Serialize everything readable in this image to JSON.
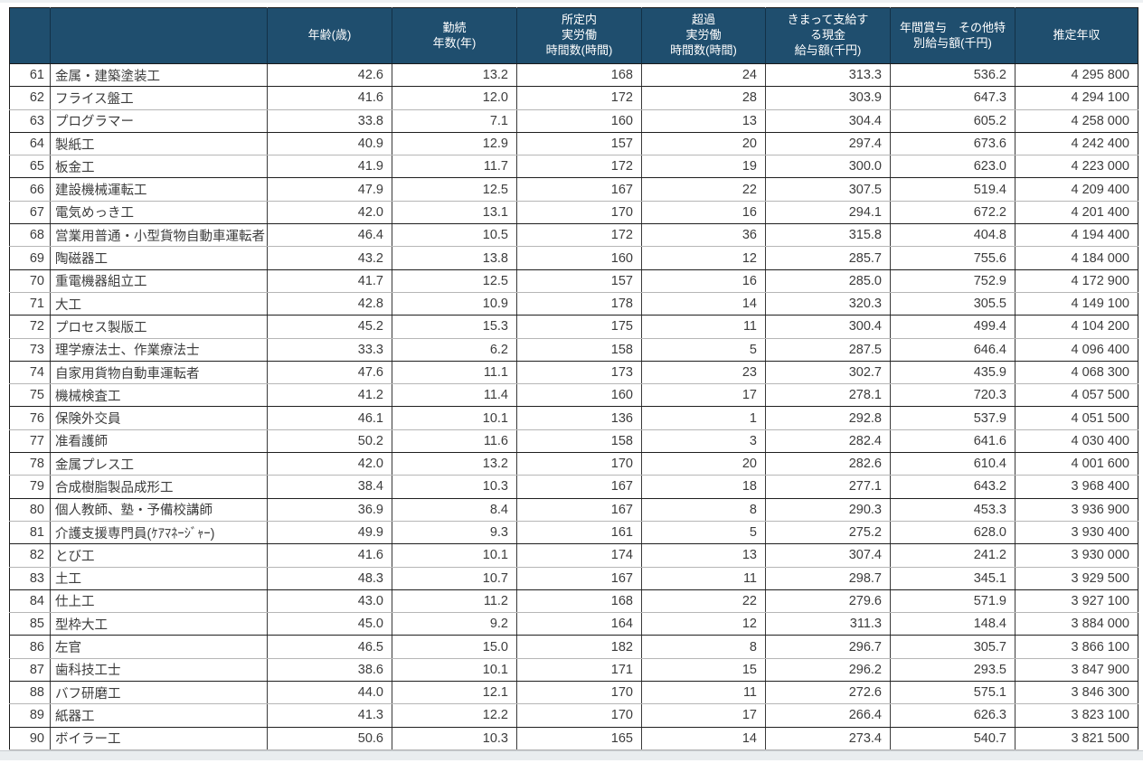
{
  "colors": {
    "header_bg": "#1f4e6e",
    "header_text": "#ffffff",
    "grid_dark": "#1f1f1f",
    "grid_light": "#b6b6b6",
    "cell_text": "#3c3c3c",
    "page_margin": "#e9edef"
  },
  "table": {
    "columns": [
      {
        "key": "rank",
        "label": ""
      },
      {
        "key": "name",
        "label": ""
      },
      {
        "key": "age",
        "label": "年齢(歳)"
      },
      {
        "key": "tenure",
        "label": "勤続\n年数(年)"
      },
      {
        "key": "scheduled_hours",
        "label": "所定内\n実労働\n時間数(時間)"
      },
      {
        "key": "overtime_hours",
        "label": "超過\n実労働\n時間数(時間)"
      },
      {
        "key": "monthly_pay",
        "label": "きまって支給す\nる現金\n給与額(千円)"
      },
      {
        "key": "bonus",
        "label": "年間賞与　その他特\n別給与額(千円)"
      },
      {
        "key": "annual_income",
        "label": "推定年収"
      }
    ],
    "rows": [
      [
        "61",
        "金属・建築塗装工",
        "42.6",
        "13.2",
        "168",
        "24",
        "313.3",
        "536.2",
        "4 295 800"
      ],
      [
        "62",
        "フライス盤工",
        "41.6",
        "12.0",
        "172",
        "28",
        "303.9",
        "647.3",
        "4 294 100"
      ],
      [
        "63",
        "プログラマー",
        "33.8",
        "7.1",
        "160",
        "13",
        "304.4",
        "605.2",
        "4 258 000"
      ],
      [
        "64",
        "製紙工",
        "40.9",
        "12.9",
        "157",
        "20",
        "297.4",
        "673.6",
        "4 242 400"
      ],
      [
        "65",
        "板金工",
        "41.9",
        "11.7",
        "172",
        "19",
        "300.0",
        "623.0",
        "4 223 000"
      ],
      [
        "66",
        "建設機械運転工",
        "47.9",
        "12.5",
        "167",
        "22",
        "307.5",
        "519.4",
        "4 209 400"
      ],
      [
        "67",
        "電気めっき工",
        "42.0",
        "13.1",
        "170",
        "16",
        "294.1",
        "672.2",
        "4 201 400"
      ],
      [
        "68",
        "営業用普通・小型貨物自動車運転者",
        "46.4",
        "10.5",
        "172",
        "36",
        "315.8",
        "404.8",
        "4 194 400"
      ],
      [
        "69",
        "陶磁器工",
        "43.2",
        "13.8",
        "160",
        "12",
        "285.7",
        "755.6",
        "4 184 000"
      ],
      [
        "70",
        "重電機器組立工",
        "41.7",
        "12.5",
        "157",
        "16",
        "285.0",
        "752.9",
        "4 172 900"
      ],
      [
        "71",
        "大工",
        "42.8",
        "10.9",
        "178",
        "14",
        "320.3",
        "305.5",
        "4 149 100"
      ],
      [
        "72",
        "プロセス製版工",
        "45.2",
        "15.3",
        "175",
        "11",
        "300.4",
        "499.4",
        "4 104 200"
      ],
      [
        "73",
        "理学療法士、作業療法士",
        "33.3",
        "6.2",
        "158",
        "5",
        "287.5",
        "646.4",
        "4 096 400"
      ],
      [
        "74",
        "自家用貨物自動車運転者",
        "47.6",
        "11.1",
        "173",
        "23",
        "302.7",
        "435.9",
        "4 068 300"
      ],
      [
        "75",
        "機械検査工",
        "41.2",
        "11.4",
        "160",
        "17",
        "278.1",
        "720.3",
        "4 057 500"
      ],
      [
        "76",
        "保険外交員",
        "46.1",
        "10.1",
        "136",
        "1",
        "292.8",
        "537.9",
        "4 051 500"
      ],
      [
        "77",
        "准看護師",
        "50.2",
        "11.6",
        "158",
        "3",
        "282.4",
        "641.6",
        "4 030 400"
      ],
      [
        "78",
        "金属プレス工",
        "42.0",
        "13.2",
        "170",
        "20",
        "282.6",
        "610.4",
        "4 001 600"
      ],
      [
        "79",
        "合成樹脂製品成形工",
        "38.4",
        "10.3",
        "167",
        "18",
        "277.1",
        "643.2",
        "3 968 400"
      ],
      [
        "80",
        "個人教師、塾・予備校講師",
        "36.9",
        "8.4",
        "167",
        "8",
        "290.3",
        "453.3",
        "3 936 900"
      ],
      [
        "81",
        "介護支援専門員(ｹｱﾏﾈｰｼﾞｬｰ)",
        "49.9",
        "9.3",
        "161",
        "5",
        "275.2",
        "628.0",
        "3 930 400"
      ],
      [
        "82",
        "とび工",
        "41.6",
        "10.1",
        "174",
        "13",
        "307.4",
        "241.2",
        "3 930 000"
      ],
      [
        "83",
        "土工",
        "48.3",
        "10.7",
        "167",
        "11",
        "298.7",
        "345.1",
        "3 929 500"
      ],
      [
        "84",
        "仕上工",
        "43.0",
        "11.2",
        "168",
        "22",
        "279.6",
        "571.9",
        "3 927 100"
      ],
      [
        "85",
        "型枠大工",
        "45.0",
        "9.2",
        "164",
        "12",
        "311.3",
        "148.4",
        "3 884 000"
      ],
      [
        "86",
        "左官",
        "46.5",
        "15.0",
        "182",
        "8",
        "296.7",
        "305.7",
        "3 866 100"
      ],
      [
        "87",
        "歯科技工士",
        "38.6",
        "10.1",
        "171",
        "15",
        "296.2",
        "293.5",
        "3 847 900"
      ],
      [
        "88",
        "バフ研磨工",
        "44.0",
        "12.1",
        "170",
        "11",
        "272.6",
        "575.1",
        "3 846 300"
      ],
      [
        "89",
        "紙器工",
        "41.3",
        "12.2",
        "170",
        "17",
        "266.4",
        "626.3",
        "3 823 100"
      ],
      [
        "90",
        "ボイラー工",
        "50.6",
        "10.3",
        "165",
        "14",
        "273.4",
        "540.7",
        "3 821 500"
      ]
    ]
  }
}
